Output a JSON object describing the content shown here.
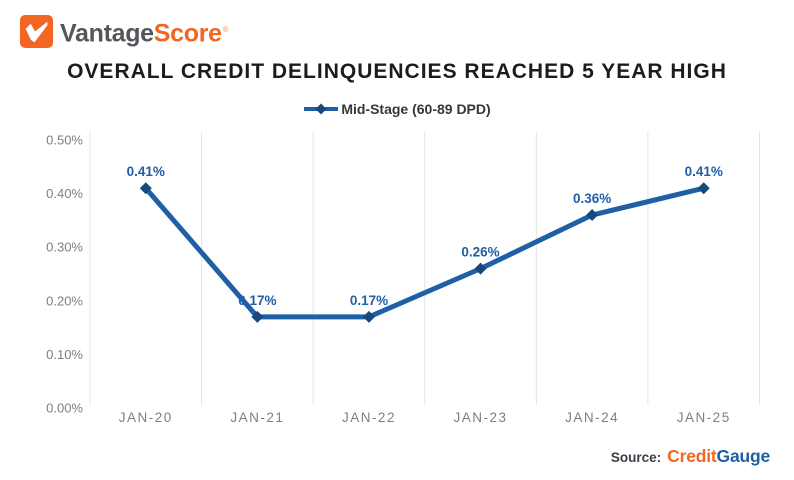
{
  "header": {
    "logo": {
      "brand_prefix": "Vantage",
      "brand_suffix": "Score",
      "trademark": "®"
    }
  },
  "title": "OVERALL CREDIT DELINQUENCIES REACHED 5 YEAR HIGH",
  "legend": {
    "label": "Mid-Stage (60-89 DPD)"
  },
  "chart_data": {
    "type": "line",
    "title": "OVERALL CREDIT DELINQUENCIES REACHED 5 YEAR HIGH",
    "categories": [
      "JAN-20",
      "JAN-21",
      "JAN-22",
      "JAN-23",
      "JAN-24",
      "JAN-25"
    ],
    "series": [
      {
        "name": "Mid-Stage (60-89 DPD)",
        "values": [
          0.41,
          0.17,
          0.17,
          0.26,
          0.36,
          0.41
        ],
        "labels": [
          "0.41%",
          "0.17%",
          "0.17%",
          "0.26%",
          "0.36%",
          "0.41%"
        ]
      }
    ],
    "xlabel": "",
    "ylabel": "",
    "ylim": [
      0,
      0.5
    ],
    "y_ticks": [
      "0.00%",
      "0.10%",
      "0.20%",
      "0.30%",
      "0.40%",
      "0.50%"
    ],
    "grid": "vertical-only",
    "legend_position": "top-center",
    "marker": "diamond"
  },
  "footer": {
    "source_label": "Source:",
    "source_brand_credit": "Credit",
    "source_brand_gauge": "Gauge"
  },
  "colors": {
    "line": "#1E5FA5",
    "marker": "#17497E",
    "data_label": "#1E5FA5",
    "grid": "#E4E4E4",
    "axis_text": "#7F7F7F",
    "title_text": "#1C1C1C",
    "legend_text": "#33373D",
    "logo_orange": "#F26522",
    "logo_gray": "#54565B",
    "source_blue": "#1E5FA5"
  }
}
